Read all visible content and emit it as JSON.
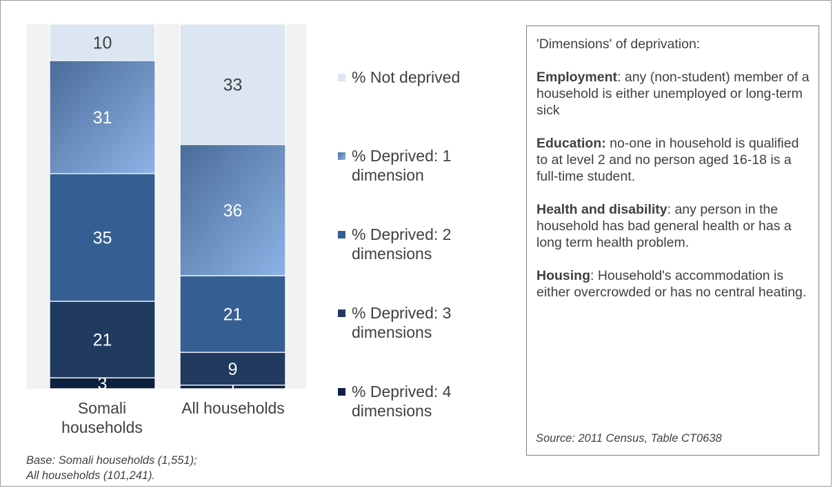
{
  "chart_data": {
    "type": "bar",
    "stacked": true,
    "categories": [
      "Somali households",
      "All households"
    ],
    "category_label_lines": [
      [
        "Somali",
        "households"
      ],
      [
        "All households"
      ]
    ],
    "series": [
      {
        "name": "% Deprived: 4 dimensions",
        "legend_lines": [
          "% Deprived: 4",
          "dimensions"
        ],
        "values": [
          3,
          1
        ],
        "color": "#0f2140"
      },
      {
        "name": "% Deprived: 3 dimensions",
        "legend_lines": [
          "% Deprived: 3",
          "dimensions"
        ],
        "values": [
          21,
          9
        ],
        "color": "#203a60"
      },
      {
        "name": "% Deprived: 2 dimensions",
        "legend_lines": [
          "% Deprived: 2",
          "dimensions"
        ],
        "values": [
          35,
          21
        ],
        "color": "#355f93"
      },
      {
        "name": "% Deprived: 1 dimension",
        "legend_lines": [
          "% Deprived: 1",
          "dimension"
        ],
        "values": [
          31,
          36
        ],
        "color": "#6f98cf"
      },
      {
        "name": "% Not deprived",
        "legend_lines": [
          "% Not deprived"
        ],
        "values": [
          10,
          33
        ],
        "color": "#dce6f2"
      }
    ],
    "ylim": [
      0,
      100
    ],
    "grid": false,
    "legend_position": "right"
  },
  "info_box": {
    "heading": "'Dimensions' of deprivation:",
    "items": [
      {
        "term": "Employment",
        "sep": ":",
        "text": " any (non-student) member of a household is either unemployed or long-term sick"
      },
      {
        "term": "Education:",
        "sep": "",
        "text": " no-one in household is qualified to at  level 2 and no person aged 16-18 is a full-time student."
      },
      {
        "term": "Health and disability",
        "sep": ":",
        "text": " any person in the household has bad general health or has a long term health problem."
      },
      {
        "term": "Housing",
        "sep": ":",
        "text": " Household's accommodation is either overcrowded or has no central heating."
      }
    ],
    "source": "Source: 2011 Census, Table CT0638"
  },
  "base_note": {
    "line1": "Base: Somali households (1,551);",
    "line2": "All households (101,241)."
  }
}
